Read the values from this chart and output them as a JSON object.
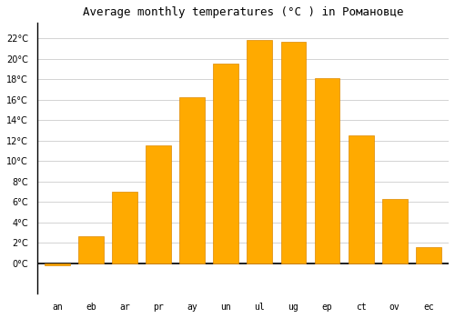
{
  "title": "Average monthly temperatures (°C ) in Романовце",
  "months": [
    "an",
    "eb",
    "ar",
    "pr",
    "ay",
    "un",
    "ul",
    "ug",
    "ep",
    "ct",
    "ov",
    "ec"
  ],
  "values": [
    -0.2,
    2.6,
    7.0,
    11.5,
    16.2,
    19.5,
    21.8,
    21.7,
    18.1,
    12.5,
    6.3,
    1.6
  ],
  "bar_color": "#FFAA00",
  "bar_edge_color": "#DD8800",
  "ylim": [
    -3,
    23.5
  ],
  "yticks": [
    0,
    2,
    4,
    6,
    8,
    10,
    12,
    14,
    16,
    18,
    20,
    22
  ],
  "grid_color": "#cccccc",
  "background_color": "#ffffff",
  "title_fontsize": 9,
  "bar_width": 0.75
}
